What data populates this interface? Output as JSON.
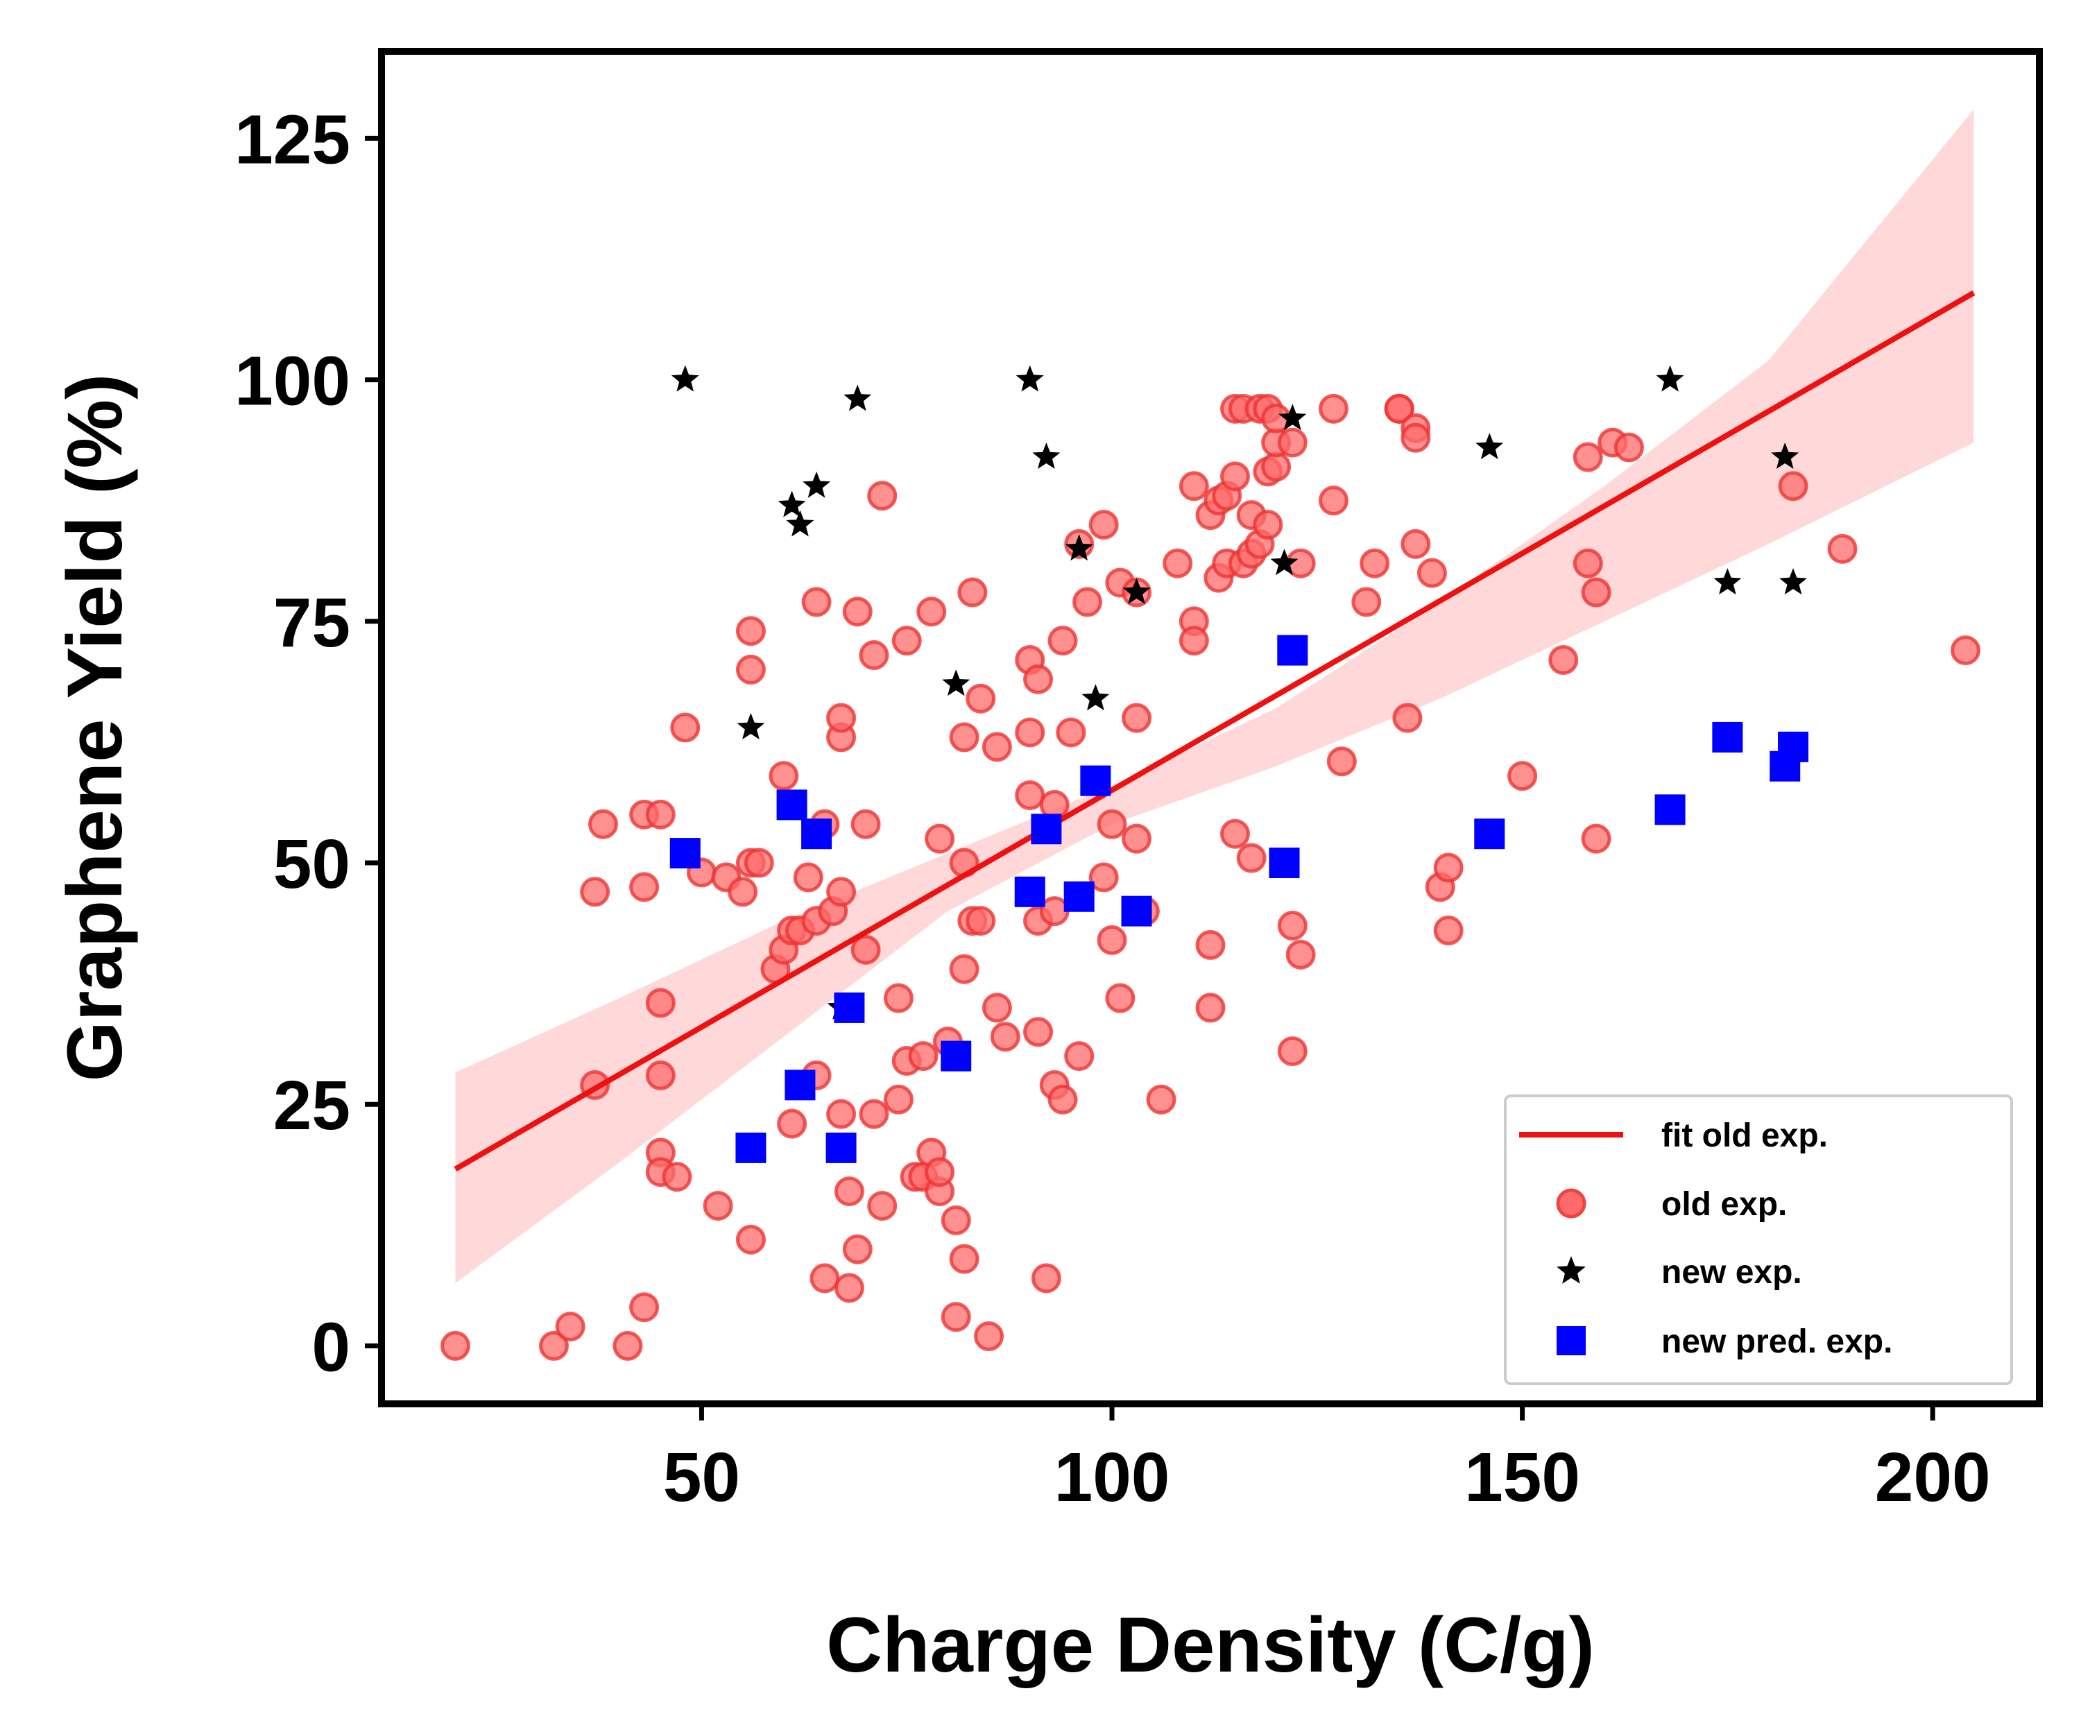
{
  "chart_data": {
    "type": "scatter",
    "xlabel": "Charge Density (C/g)",
    "ylabel": "Graphene Yield (%)",
    "xlim": [
      11,
      213
    ],
    "ylim": [
      -6,
      134
    ],
    "x_ticks": [
      50,
      100,
      150,
      200
    ],
    "y_ticks": [
      0,
      25,
      50,
      75,
      100,
      125
    ],
    "grid": false,
    "legend_position": "lower-right",
    "fit": {
      "name": "fit old exp.",
      "color": "#ee1111",
      "band_color": "#ffd9d9",
      "points": [
        [
          20,
          18.3
        ],
        [
          205,
          109
        ]
      ],
      "band": {
        "x": [
          20,
          40,
          60,
          80,
          100,
          120,
          140,
          160,
          180,
          205
        ],
        "upper": [
          28.3,
          36,
          44,
          51,
          58,
          66,
          77,
          89,
          102,
          128
        ],
        "lower": [
          6.5,
          19,
          32,
          45,
          54,
          60,
          67,
          75,
          83,
          93.5
        ]
      }
    },
    "series": [
      {
        "name": "old exp.",
        "marker": "circle",
        "color": "#ff6b6b",
        "points": [
          [
            20,
            0
          ],
          [
            32,
            0
          ],
          [
            34,
            2
          ],
          [
            41,
            0
          ],
          [
            43,
            4
          ],
          [
            37,
            27
          ],
          [
            45,
            28
          ],
          [
            45,
            35.5
          ],
          [
            45,
            20
          ],
          [
            45,
            18
          ],
          [
            47,
            17.5
          ],
          [
            37,
            47
          ],
          [
            38,
            54
          ],
          [
            43,
            55
          ],
          [
            45,
            55
          ],
          [
            43,
            47.5
          ],
          [
            48,
            64
          ],
          [
            50,
            49
          ],
          [
            53,
            48.5
          ],
          [
            55,
            47
          ],
          [
            56,
            50
          ],
          [
            57,
            50
          ],
          [
            52,
            14.5
          ],
          [
            56,
            11
          ],
          [
            56,
            74
          ],
          [
            56,
            70
          ],
          [
            59,
            39
          ],
          [
            60,
            41
          ],
          [
            60,
            59
          ],
          [
            61,
            43
          ],
          [
            61,
            23
          ],
          [
            62,
            43
          ],
          [
            63,
            48.5
          ],
          [
            64,
            44
          ],
          [
            64,
            77
          ],
          [
            65,
            54
          ],
          [
            66,
            45
          ],
          [
            67,
            47
          ],
          [
            67,
            63
          ],
          [
            67,
            65
          ],
          [
            64,
            28
          ],
          [
            65,
            7
          ],
          [
            67,
            24
          ],
          [
            68,
            16
          ],
          [
            68,
            6
          ],
          [
            69,
            10
          ],
          [
            69,
            76
          ],
          [
            70,
            41
          ],
          [
            70,
            54
          ],
          [
            71,
            71.5
          ],
          [
            71,
            24
          ],
          [
            72,
            14.5
          ],
          [
            72,
            88
          ],
          [
            74,
            36
          ],
          [
            74,
            25.5
          ],
          [
            75,
            29.5
          ],
          [
            75,
            73
          ],
          [
            76,
            17.5
          ],
          [
            77,
            30
          ],
          [
            77,
            17.5
          ],
          [
            78,
            76
          ],
          [
            78,
            20
          ],
          [
            79,
            16
          ],
          [
            79,
            52.5
          ],
          [
            79,
            18
          ],
          [
            80,
            31.5
          ],
          [
            81,
            13
          ],
          [
            81,
            3
          ],
          [
            82,
            9
          ],
          [
            82,
            39
          ],
          [
            82,
            50
          ],
          [
            82,
            63
          ],
          [
            83,
            44
          ],
          [
            83,
            78
          ],
          [
            84,
            44
          ],
          [
            84,
            67
          ],
          [
            85,
            1
          ],
          [
            86,
            62
          ],
          [
            86,
            35
          ],
          [
            87,
            32
          ],
          [
            90,
            57
          ],
          [
            90,
            71
          ],
          [
            90,
            63.5
          ],
          [
            91,
            69
          ],
          [
            91,
            44
          ],
          [
            91,
            32.5
          ],
          [
            92,
            7
          ],
          [
            93,
            45
          ],
          [
            93,
            56
          ],
          [
            93,
            27
          ],
          [
            94,
            25.5
          ],
          [
            94,
            73
          ],
          [
            95,
            63.5
          ],
          [
            96,
            30
          ],
          [
            96,
            83
          ],
          [
            97,
            77
          ],
          [
            99,
            85
          ],
          [
            99,
            48.5
          ],
          [
            100,
            54
          ],
          [
            100,
            42
          ],
          [
            101,
            36
          ],
          [
            101,
            79
          ],
          [
            103,
            78
          ],
          [
            103,
            52.5
          ],
          [
            103,
            65
          ],
          [
            104,
            45
          ],
          [
            106,
            25.5
          ],
          [
            108,
            81
          ],
          [
            110,
            89
          ],
          [
            110,
            75
          ],
          [
            110,
            73
          ],
          [
            112,
            41.5
          ],
          [
            112,
            35
          ],
          [
            112,
            86
          ],
          [
            113,
            87.5
          ],
          [
            113,
            79.5
          ],
          [
            114,
            88
          ],
          [
            114,
            81
          ],
          [
            115,
            90
          ],
          [
            115,
            97
          ],
          [
            115,
            53
          ],
          [
            116,
            97
          ],
          [
            116,
            81
          ],
          [
            117,
            50.5
          ],
          [
            117,
            82
          ],
          [
            117,
            86
          ],
          [
            118,
            83
          ],
          [
            118,
            97
          ],
          [
            119,
            90.5
          ],
          [
            119,
            97
          ],
          [
            119,
            85
          ],
          [
            120,
            91
          ],
          [
            120,
            93.5
          ],
          [
            120,
            96
          ],
          [
            122,
            93.5
          ],
          [
            122,
            43.5
          ],
          [
            123,
            40.5
          ],
          [
            122,
            30.5
          ],
          [
            123,
            81
          ],
          [
            127,
            97
          ],
          [
            127,
            87.5
          ],
          [
            128,
            60.5
          ],
          [
            131,
            77
          ],
          [
            132,
            81
          ],
          [
            135,
            97
          ],
          [
            135,
            97
          ],
          [
            136,
            65
          ],
          [
            137,
            95
          ],
          [
            137,
            94
          ],
          [
            137,
            83
          ],
          [
            139,
            80
          ],
          [
            140,
            47.5
          ],
          [
            141,
            49.5
          ],
          [
            141,
            43
          ],
          [
            150,
            59
          ],
          [
            155,
            71
          ],
          [
            158,
            92
          ],
          [
            158,
            81
          ],
          [
            159,
            78
          ],
          [
            159,
            52.5
          ],
          [
            161,
            93.5
          ],
          [
            163,
            93
          ],
          [
            183,
            89
          ],
          [
            189,
            82.5
          ],
          [
            204,
            72
          ]
        ]
      },
      {
        "name": "new exp.",
        "marker": "star",
        "color": "#000000",
        "points": [
          [
            48,
            100
          ],
          [
            56,
            64
          ],
          [
            61,
            87
          ],
          [
            62,
            85
          ],
          [
            64,
            89
          ],
          [
            67,
            35
          ],
          [
            69,
            98
          ],
          [
            81,
            68.5
          ],
          [
            90,
            100
          ],
          [
            92,
            92
          ],
          [
            96,
            82.5
          ],
          [
            98,
            67
          ],
          [
            103,
            78
          ],
          [
            121,
            81
          ],
          [
            122,
            96
          ],
          [
            146,
            93
          ],
          [
            168,
            100
          ],
          [
            175,
            79
          ],
          [
            182,
            92
          ],
          [
            183,
            79
          ]
        ]
      },
      {
        "name": "new pred. exp.",
        "marker": "square",
        "color": "#0000ff",
        "points": [
          [
            48,
            51
          ],
          [
            56,
            20.5
          ],
          [
            61,
            56
          ],
          [
            62,
            27
          ],
          [
            64,
            53
          ],
          [
            67,
            20.5
          ],
          [
            68,
            35
          ],
          [
            81,
            30
          ],
          [
            90,
            47
          ],
          [
            92,
            53.5
          ],
          [
            96,
            46.5
          ],
          [
            98,
            58.5
          ],
          [
            103,
            45
          ],
          [
            121,
            50
          ],
          [
            122,
            72
          ],
          [
            146,
            53
          ],
          [
            168,
            55.5
          ],
          [
            175,
            63
          ],
          [
            182,
            60
          ],
          [
            183,
            62
          ]
        ]
      }
    ]
  }
}
